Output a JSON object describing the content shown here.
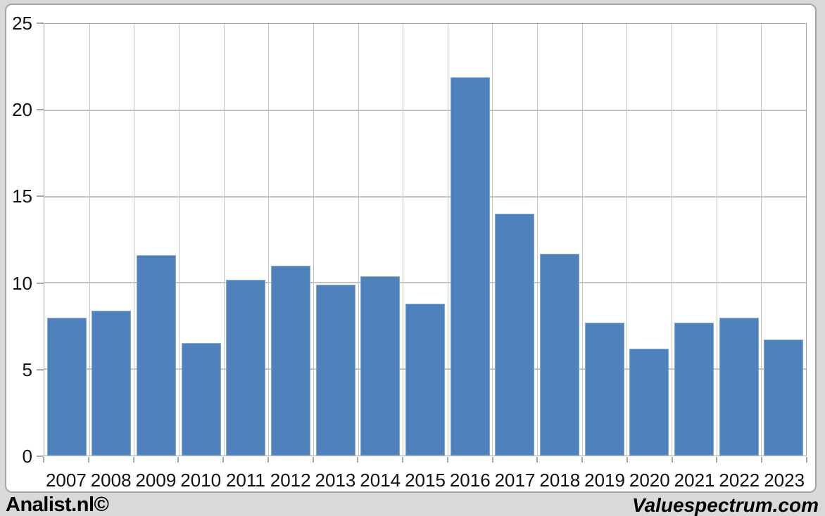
{
  "page": {
    "background_color": "#d9d9d9",
    "panel": {
      "background_color": "#ffffff",
      "border_color": "#a6a6a6"
    }
  },
  "footer": {
    "left_brand": "Analist.nl©",
    "right_brand": "Valuespectrum.com",
    "text_color": "#000000"
  },
  "chart_data": {
    "type": "bar",
    "title": "",
    "xlabel": "",
    "ylabel": "",
    "categories": [
      "2007",
      "2008",
      "2009",
      "2010",
      "2011",
      "2012",
      "2013",
      "2014",
      "2015",
      "2016",
      "2017",
      "2018",
      "2019",
      "2020",
      "2021",
      "2022",
      "2023"
    ],
    "values": [
      8.0,
      8.4,
      11.6,
      6.5,
      10.2,
      11.0,
      9.9,
      10.4,
      8.8,
      21.9,
      14.0,
      11.7,
      7.7,
      6.2,
      7.7,
      8.0,
      6.7
    ],
    "ylim": [
      0,
      25
    ],
    "yticks": [
      0,
      5,
      10,
      15,
      20,
      25
    ],
    "grid": true,
    "legend_position": "none",
    "bar_color": "#4f81bd",
    "bar_border_color": "#85a9d6",
    "gridline_color": "#c4c4c4",
    "axis_line_color": "#a8a8a8",
    "tick_label_color": "#111111"
  }
}
